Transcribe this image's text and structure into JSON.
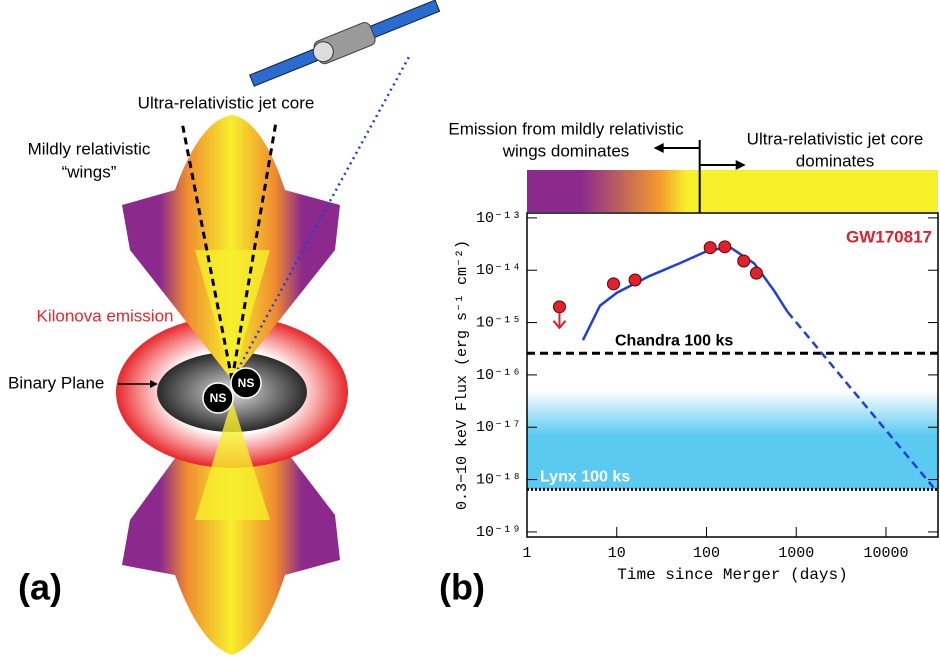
{
  "diagram": {
    "panel_label": "(a)",
    "jet_core_label": "Ultra-relativistic jet core",
    "wings_label": [
      "Mildly relativistic",
      "“wings”"
    ],
    "kilonova_label": "Kilonova emission",
    "binary_plane_label": "Binary Plane",
    "ns_labels": [
      "NS",
      "NS"
    ]
  },
  "chart_data": {
    "type": "line",
    "panel_label": "(b)",
    "xlabel": "Time since Merger (days)",
    "ylabel": "0.3−10 keV Flux (erg s⁻¹ cm⁻²)",
    "source_label": "GW170817",
    "log_x": true,
    "log_y": true,
    "xlim": [
      1,
      38000
    ],
    "ylim": [
      8e-20,
      1.24e-13
    ],
    "xticks": [
      1,
      10,
      100,
      1000,
      10000
    ],
    "yticks": [
      {
        "value": 1e-13,
        "label": "10⁻¹³"
      },
      {
        "value": 1e-14,
        "label": "10⁻¹⁴"
      },
      {
        "value": 1e-15,
        "label": "10⁻¹⁵"
      },
      {
        "value": 1e-16,
        "label": "10⁻¹⁶"
      },
      {
        "value": 1e-17,
        "label": "10⁻¹⁷"
      },
      {
        "value": 1e-18,
        "label": "10⁻¹⁸"
      },
      {
        "value": 1e-19,
        "label": "10⁻¹⁹"
      }
    ],
    "series": [
      {
        "color": "#1f3fdc",
        "style": "solid",
        "x": [
          4.2,
          6.5,
          10,
          23,
          50,
          100,
          180,
          340,
          570,
          800
        ],
        "values": [
          4.6e-16,
          2.1e-15,
          3.7e-15,
          7.7e-15,
          1.35e-14,
          2.3e-14,
          2.8e-14,
          1.35e-14,
          4e-15,
          1.6e-15
        ]
      },
      {
        "color": "#1f3fdc",
        "style": "dashed",
        "x": [
          800,
          34000
        ],
        "values": [
          1.6e-15,
          7e-19
        ]
      }
    ],
    "points": {
      "color": "#e0202a",
      "x": [
        2.3,
        9.2,
        16,
        110,
        160,
        260,
        360
      ],
      "values": [
        2e-15,
        5.5e-15,
        6.5e-15,
        2.7e-14,
        2.8e-14,
        1.5e-14,
        8.8e-15
      ],
      "upper_limit": [
        true,
        false,
        false,
        false,
        false,
        false,
        false
      ]
    },
    "thresholds": [
      {
        "label": "Chandra 100 ks",
        "value": 2.6e-16,
        "style": "dashed",
        "color": "#000000"
      },
      {
        "label": "Lynx 100 ks",
        "value": 6.5e-19,
        "style": "dotted",
        "color": "#000000"
      }
    ],
    "band": {
      "from": 6.5e-19,
      "to": 5e-17,
      "color": "#5bcaf0"
    },
    "colorbar": {
      "divider": 84,
      "left_text": [
        "Emission from mildly relativistic",
        "wings dominates"
      ],
      "right_text": [
        "Ultra-relativistic jet core",
        "dominates"
      ],
      "gradient": [
        {
          "at": 4,
          "color": "#8b2a8c"
        },
        {
          "at": 30,
          "color": "#f39a2c"
        },
        {
          "at": 60,
          "color": "#f5f02a"
        }
      ]
    }
  }
}
